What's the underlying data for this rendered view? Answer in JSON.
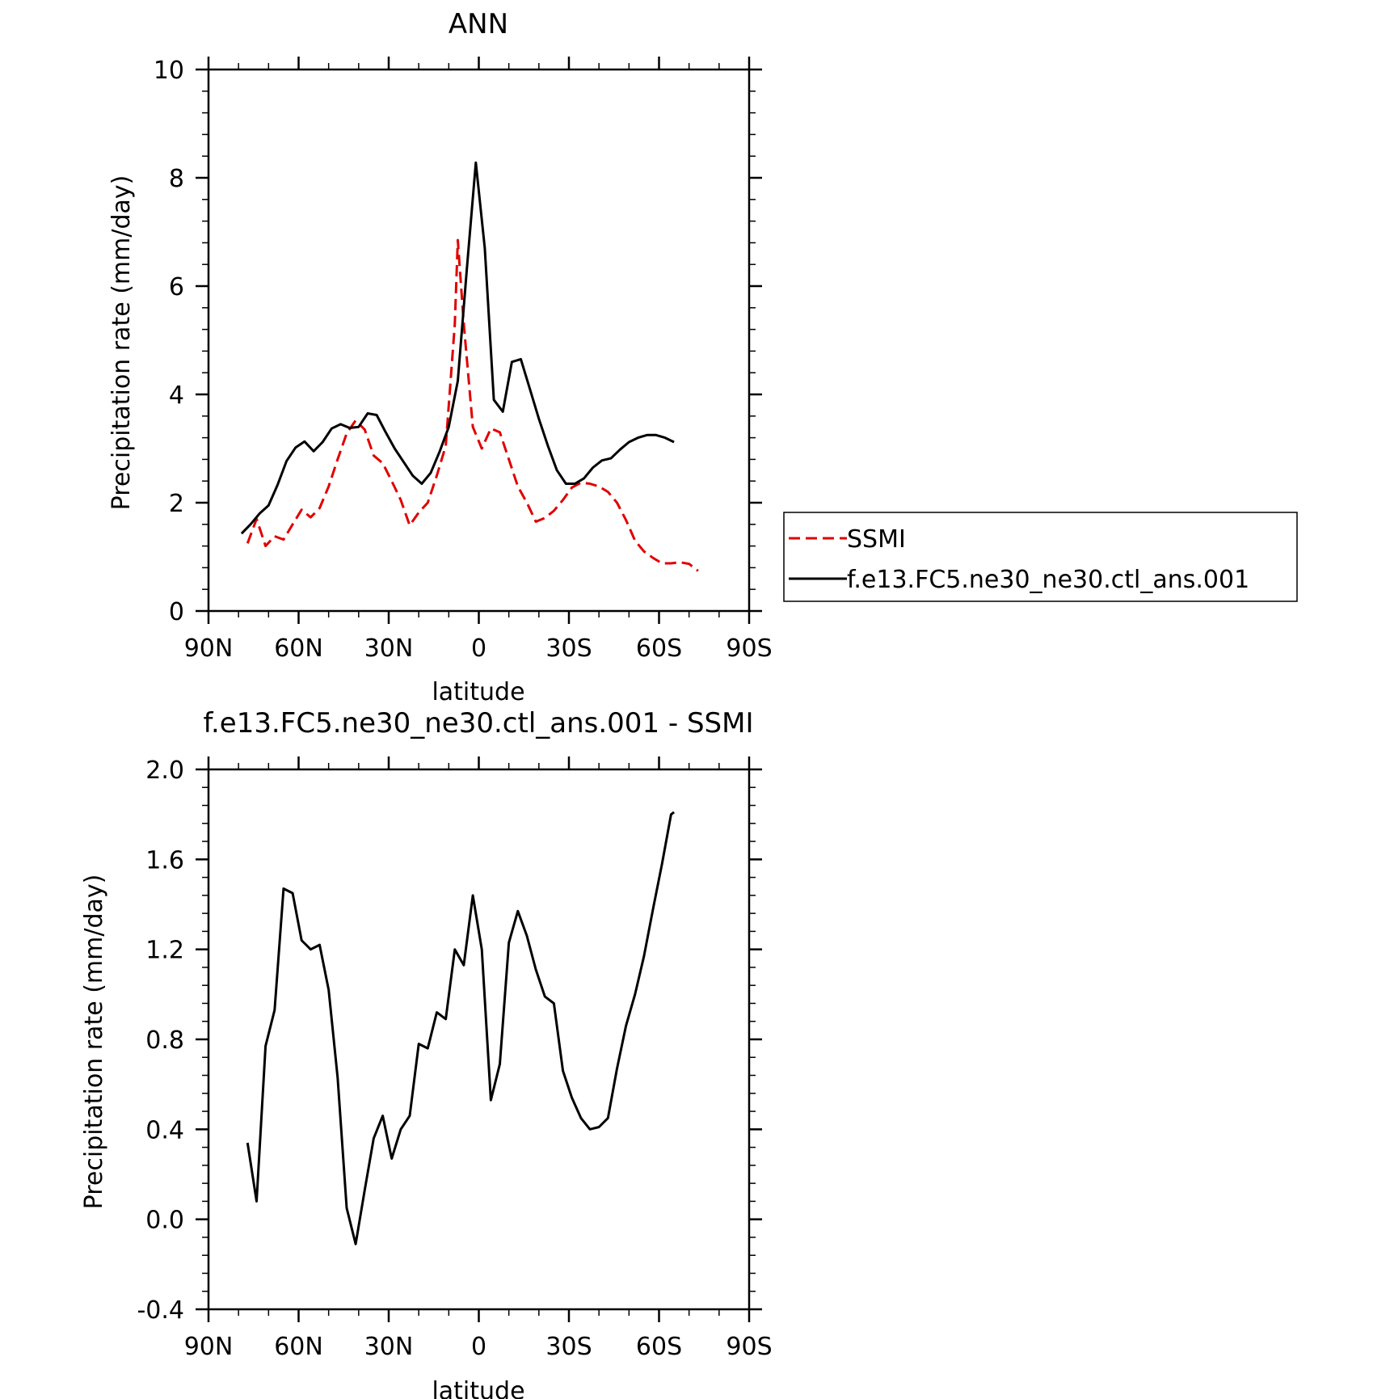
{
  "chart_data": [
    {
      "type": "line",
      "title": "ANN",
      "xlabel": "latitude",
      "ylabel": "Precipitation rate (mm/day)",
      "xlim": [
        -90,
        90
      ],
      "ylim": [
        0,
        10
      ],
      "x_tick_values": [
        -90,
        -60,
        -30,
        0,
        30,
        60,
        90
      ],
      "x_tick_labels": [
        "90N",
        "60N",
        "30N",
        "0",
        "30S",
        "60S",
        "90S"
      ],
      "y_tick_values": [
        0,
        2,
        4,
        6,
        8,
        10
      ],
      "y_tick_labels": [
        "0",
        "2",
        "4",
        "6",
        "8",
        "10"
      ],
      "legend": "right",
      "series": [
        {
          "name": "SSMI",
          "color": "#e00000",
          "dash": "dashed",
          "x": [
            -77,
            -74,
            -71,
            -68,
            -65,
            -62,
            -59,
            -56,
            -53,
            -50,
            -47,
            -44,
            -41,
            -38,
            -35,
            -32,
            -29,
            -26,
            -23,
            -20,
            -17,
            -14,
            -11,
            -8,
            -7,
            -5,
            -2,
            1,
            4,
            7,
            10,
            13,
            16,
            19,
            22,
            25,
            28,
            31,
            34,
            37,
            40,
            43,
            46,
            49,
            52,
            55,
            58,
            61,
            64,
            67,
            70,
            73
          ],
          "y": [
            1.25,
            1.7,
            1.2,
            1.38,
            1.32,
            1.6,
            1.87,
            1.73,
            1.9,
            2.3,
            2.8,
            3.28,
            3.52,
            3.35,
            2.87,
            2.73,
            2.4,
            2.05,
            1.58,
            1.82,
            2.0,
            2.5,
            3.05,
            5.3,
            6.85,
            5.3,
            3.4,
            3.0,
            3.37,
            3.3,
            2.8,
            2.3,
            2.0,
            1.65,
            1.72,
            1.85,
            2.05,
            2.28,
            2.37,
            2.35,
            2.3,
            2.2,
            2.0,
            1.68,
            1.3,
            1.1,
            0.98,
            0.88,
            0.88,
            0.9,
            0.87,
            0.74
          ]
        },
        {
          "name": "f.e13.FC5.ne30_ne30.ctl_ans.001",
          "color": "#000000",
          "dash": "solid",
          "x": [
            -79,
            -76,
            -73,
            -70,
            -67,
            -64,
            -61,
            -58,
            -55,
            -52,
            -49,
            -46,
            -43,
            -40,
            -37,
            -34,
            -31,
            -28,
            -25,
            -22,
            -19,
            -16,
            -13,
            -10,
            -7,
            -4,
            -1,
            2,
            5,
            8,
            11,
            14,
            17,
            20,
            23,
            26,
            29,
            32,
            35,
            38,
            41,
            44,
            47,
            50,
            53,
            56,
            59,
            62,
            65
          ],
          "y": [
            1.43,
            1.6,
            1.8,
            1.95,
            2.33,
            2.77,
            3.02,
            3.13,
            2.95,
            3.12,
            3.37,
            3.45,
            3.38,
            3.4,
            3.65,
            3.62,
            3.3,
            3.0,
            2.75,
            2.5,
            2.35,
            2.55,
            2.95,
            3.4,
            4.25,
            6.3,
            8.28,
            6.7,
            3.9,
            3.68,
            4.6,
            4.65,
            4.1,
            3.55,
            3.05,
            2.6,
            2.35,
            2.35,
            2.45,
            2.65,
            2.78,
            2.82,
            2.98,
            3.12,
            3.2,
            3.25,
            3.25,
            3.2,
            3.12
          ]
        }
      ]
    },
    {
      "type": "line",
      "title": "f.e13.FC5.ne30_ne30.ctl_ans.001 - SSMI",
      "xlabel": "latitude",
      "ylabel": "Precipitation rate (mm/day)",
      "xlim": [
        -90,
        90
      ],
      "ylim": [
        -0.4,
        2.0
      ],
      "x_tick_values": [
        -90,
        -60,
        -30,
        0,
        30,
        60,
        90
      ],
      "x_tick_labels": [
        "90N",
        "60N",
        "30N",
        "0",
        "30S",
        "60S",
        "90S"
      ],
      "y_tick_values": [
        -0.4,
        0.0,
        0.4,
        0.8,
        1.2,
        1.6,
        2.0
      ],
      "y_tick_labels": [
        "-0.4",
        "0.0",
        "0.4",
        "0.8",
        "1.2",
        "1.6",
        "2.0"
      ],
      "series": [
        {
          "color": "#000000",
          "dash": "solid",
          "x": [
            -77,
            -74,
            -71,
            -68,
            -65,
            -62,
            -59,
            -56,
            -53,
            -50,
            -47,
            -44,
            -41,
            -38,
            -35,
            -32,
            -29,
            -26,
            -23,
            -20,
            -17,
            -14,
            -11,
            -8,
            -5,
            -2,
            1,
            4,
            7,
            10,
            13,
            16,
            19,
            22,
            25,
            28,
            31,
            34,
            37,
            40,
            43,
            46,
            49,
            52,
            55,
            58,
            61,
            64,
            65
          ],
          "y": [
            0.34,
            0.08,
            0.77,
            0.93,
            1.47,
            1.45,
            1.24,
            1.2,
            1.22,
            1.02,
            0.63,
            0.05,
            -0.11,
            0.13,
            0.36,
            0.46,
            0.27,
            0.4,
            0.46,
            0.78,
            0.76,
            0.92,
            0.89,
            1.2,
            1.13,
            1.44,
            1.2,
            0.53,
            0.69,
            1.23,
            1.37,
            1.26,
            1.11,
            0.99,
            0.96,
            0.66,
            0.54,
            0.45,
            0.4,
            0.41,
            0.45,
            0.67,
            0.86,
            1.0,
            1.17,
            1.38,
            1.58,
            1.8,
            1.81
          ]
        }
      ]
    }
  ]
}
